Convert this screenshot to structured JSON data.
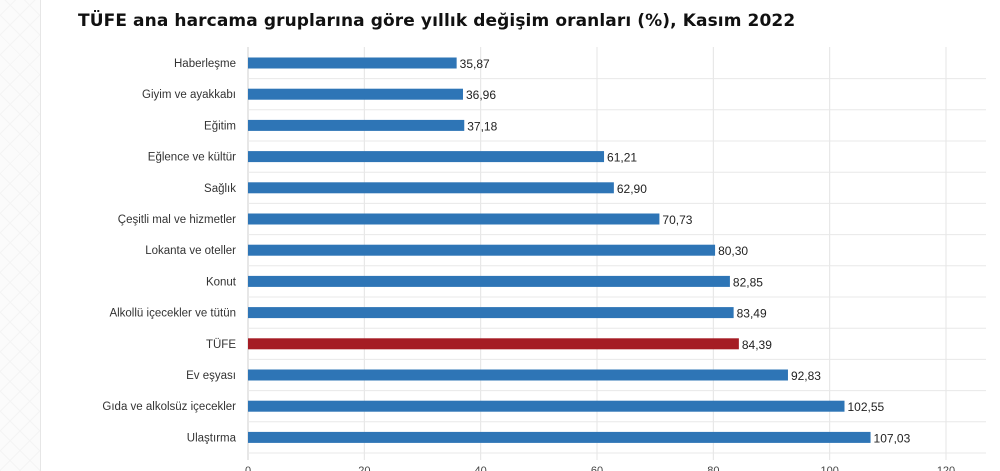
{
  "chart_data": {
    "type": "bar",
    "orientation": "horizontal",
    "title": "TÜFE ana harcama gruplarına göre yıllık değişim oranları (%), Kasım 2022",
    "categories": [
      "Haberleşme",
      "Giyim ve ayakkabı",
      "Eğitim",
      "Eğlence ve kültür",
      "Sağlık",
      "Çeşitli mal ve hizmetler",
      "Lokanta ve oteller",
      "Konut",
      "Alkollü içecekler ve tütün",
      "TÜFE",
      "Ev eşyası",
      "Gıda ve alkolsüz içecekler",
      "Ulaştırma"
    ],
    "values": [
      35.87,
      36.96,
      37.18,
      61.21,
      62.9,
      70.73,
      80.3,
      82.85,
      83.49,
      84.39,
      92.83,
      102.55,
      107.03
    ],
    "data_labels": [
      "35,87",
      "36,96",
      "37,18",
      "61,21",
      "62,90",
      "70,73",
      "80,30",
      "82,85",
      "83,49",
      "84,39",
      "92,83",
      "102,55",
      "107,03"
    ],
    "xlim": [
      0,
      120
    ],
    "x_ticks": [
      "0",
      "20",
      "40",
      "60",
      "80",
      "100",
      "120"
    ],
    "grid": true,
    "colors": {
      "default": "#2e75b6",
      "highlight": "#a51c24",
      "highlight_category": "TÜFE"
    }
  }
}
